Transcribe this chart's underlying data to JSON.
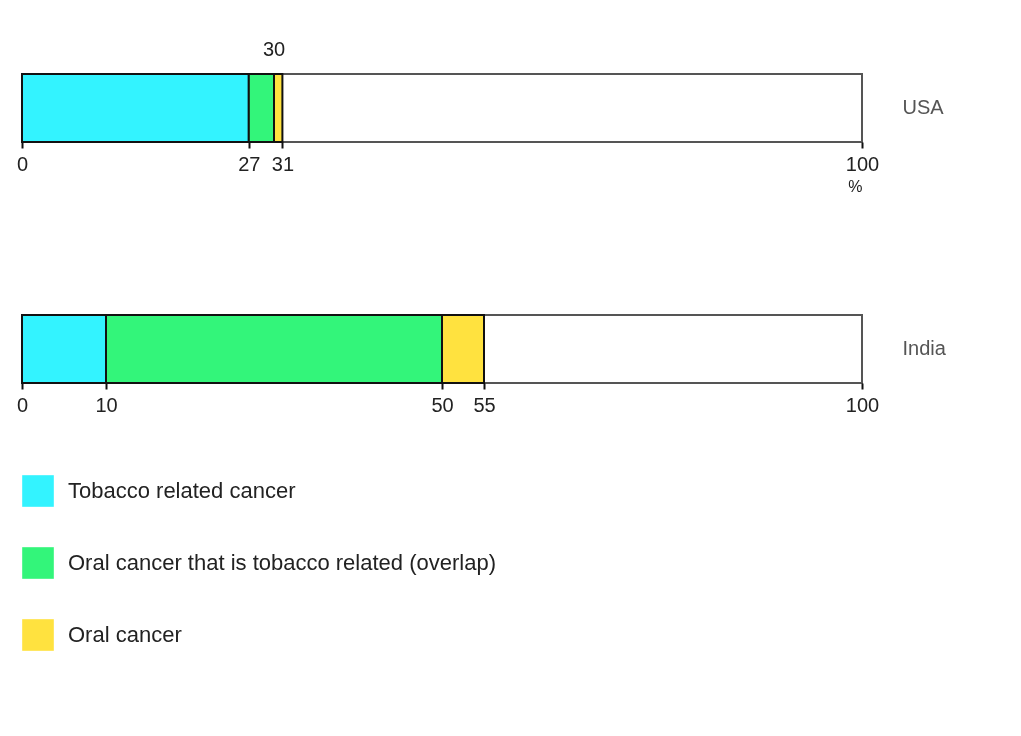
{
  "chart_data": [
    {
      "type": "bar",
      "orientation": "horizontal",
      "stacked": true,
      "categories": [
        "USA"
      ],
      "series": [
        {
          "name": "Tobacco related cancer",
          "color": "#33f3ff",
          "values": [
            27
          ]
        },
        {
          "name": "Oral cancer that is tobacco related (overlap)",
          "color": "#33f57a",
          "values": [
            3
          ]
        },
        {
          "name": "Oral cancer",
          "color": "#ffe23f",
          "values": [
            1
          ]
        }
      ],
      "xlim": [
        0,
        100
      ],
      "xticks": [
        0,
        27,
        31,
        100
      ],
      "xlabel": "%",
      "legend": "bottom",
      "annotations": [
        {
          "text": "30",
          "x": 30,
          "y": "USA"
        }
      ]
    },
    {
      "type": "bar",
      "orientation": "horizontal",
      "stacked": true,
      "categories": [
        "India"
      ],
      "series": [
        {
          "name": "Tobacco related cancer",
          "color": "#33f3ff",
          "values": [
            10
          ]
        },
        {
          "name": "Oral cancer that is tobacco related (overlap)",
          "color": "#33f57a",
          "values": [
            40
          ]
        },
        {
          "name": "Oral cancer",
          "color": "#ffe23f",
          "values": [
            5
          ]
        }
      ],
      "xlim": [
        0,
        100
      ],
      "xticks": [
        0,
        10,
        50,
        55,
        100
      ],
      "legend": "bottom"
    }
  ]
}
